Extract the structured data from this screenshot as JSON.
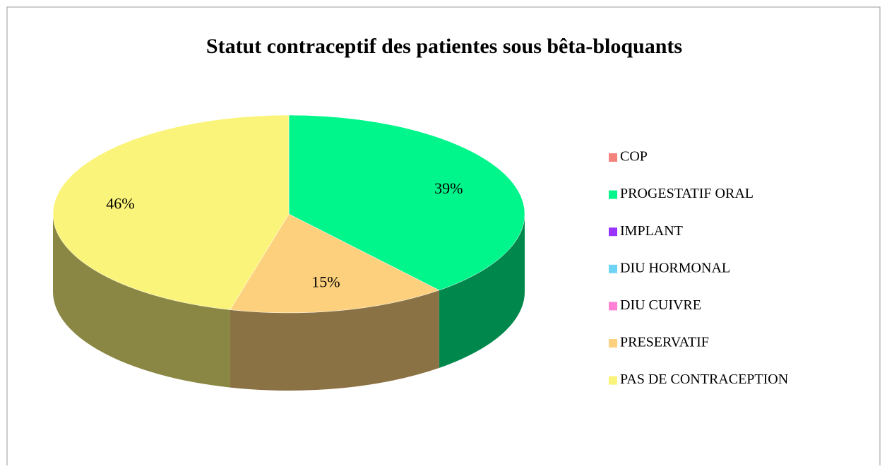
{
  "chart_data": {
    "type": "pie",
    "title": "Statut contraceptif des patientes sous bêta-bloquants",
    "categories": [
      "COP",
      "PROGESTATIF ORAL",
      "IMPLANT",
      "DIU HORMONAL",
      "DIU CUIVRE",
      "PRESERVATIF",
      "PAS DE CONTRACEPTION"
    ],
    "values": [
      0,
      39,
      0,
      0,
      0,
      15,
      46
    ],
    "value_labels": [
      null,
      "39%",
      null,
      null,
      null,
      "15%",
      "46%"
    ],
    "colors": [
      "#f4837d",
      "#00f58a",
      "#9933ff",
      "#6fd3f5",
      "#ff80d5",
      "#fcd07c",
      "#fbf47a"
    ],
    "legend": "right"
  }
}
